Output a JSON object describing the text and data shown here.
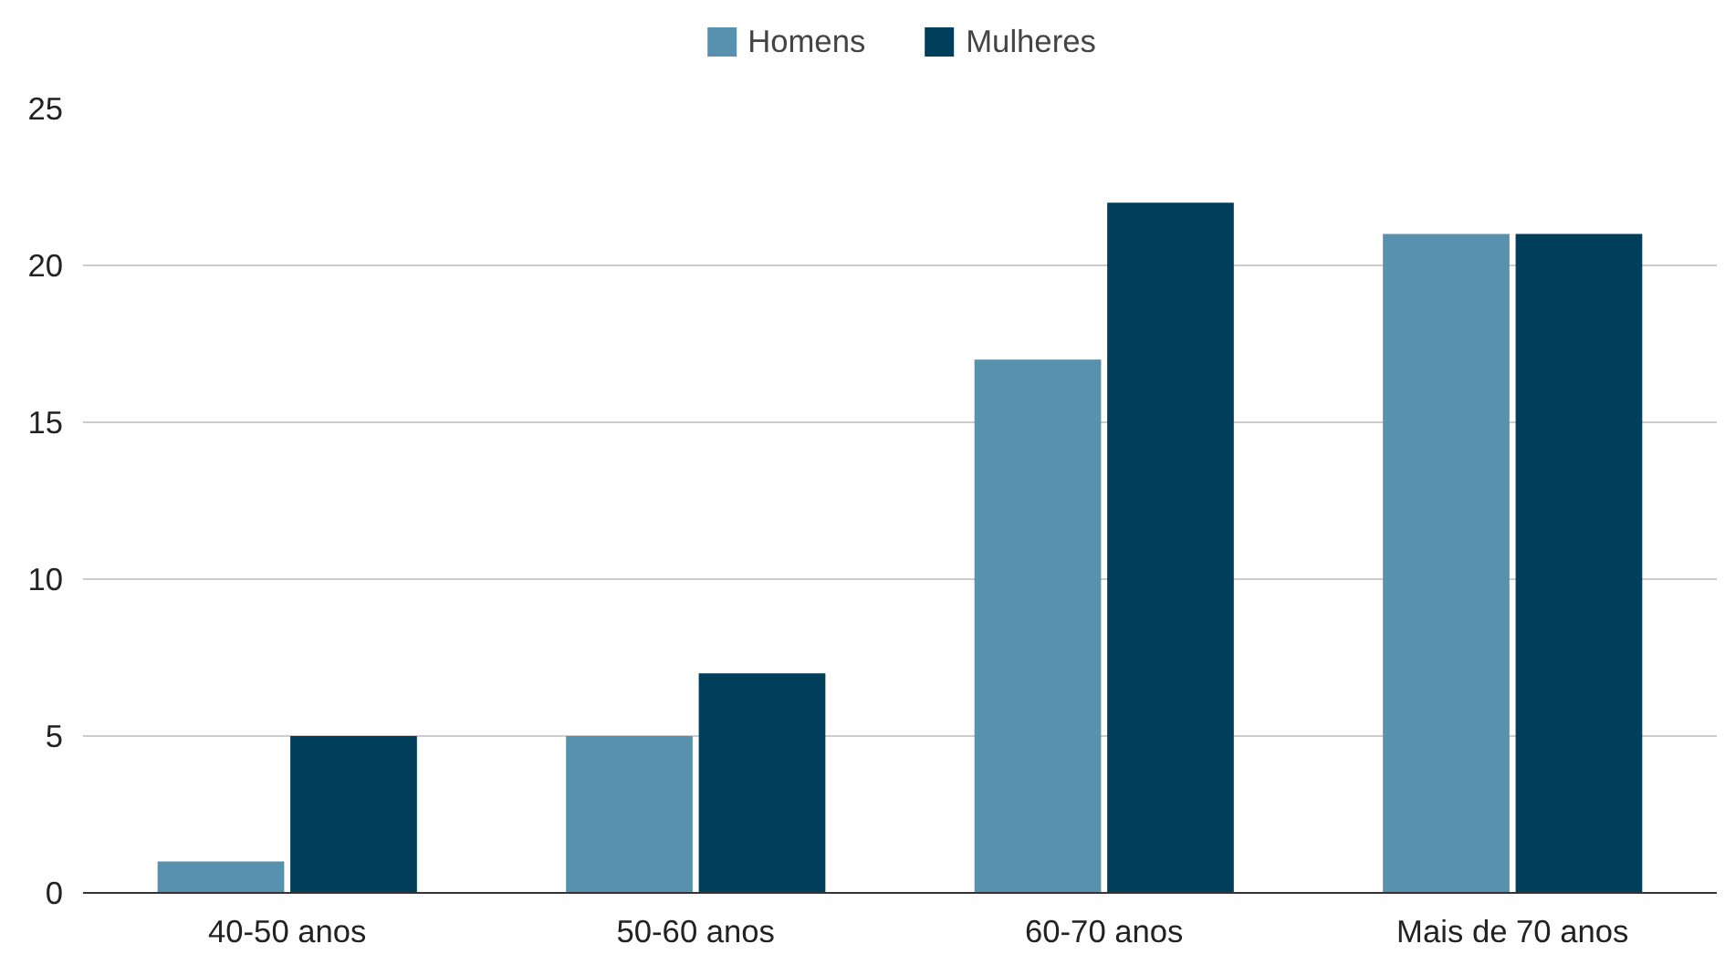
{
  "chart_data": {
    "type": "bar",
    "categories": [
      "40-50 anos",
      "50-60 anos",
      "60-70 anos",
      "Mais de 70 anos"
    ],
    "series": [
      {
        "name": "Homens",
        "color": "#5891ad",
        "values": [
          1,
          5,
          17,
          21
        ]
      },
      {
        "name": "Mulheres",
        "color": "#003f5c",
        "values": [
          5,
          7,
          22,
          21
        ]
      }
    ],
    "ylim": [
      0,
      25
    ],
    "yticks": [
      0,
      5,
      10,
      15,
      20,
      25
    ],
    "grid": "y",
    "legend": "top"
  }
}
